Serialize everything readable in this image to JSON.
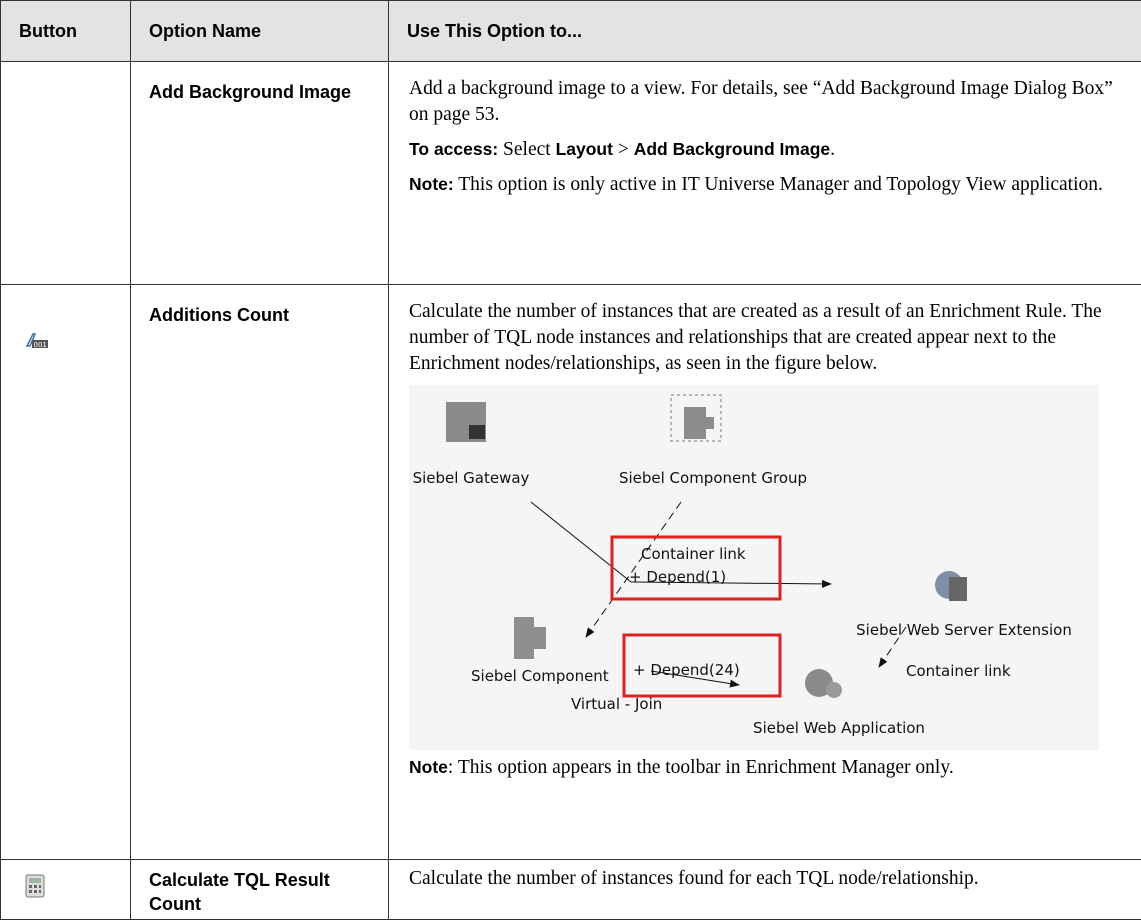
{
  "table": {
    "headers": [
      "Button",
      "Option Name",
      "Use This Option to..."
    ],
    "rows": [
      {
        "option": "Add Background Image",
        "description": [
          [
            {
              "text": "Add a background image to a view. For details, see “Add Background Image Dialog Box” on page 53.",
              "bold": false
            }
          ],
          [
            {
              "text": "To access:",
              "bold": true
            },
            {
              "text": " Select ",
              "bold": false
            },
            {
              "text": "Layout",
              "bold": true
            },
            {
              "text": " > ",
              "bold": false
            },
            {
              "text": "Add Background Image",
              "bold": true
            },
            {
              "text": ".",
              "bold": false
            }
          ],
          [
            {
              "text": "Note:",
              "bold": true
            },
            {
              "text": " This option is only active in IT Universe Manager and Topology View application.",
              "bold": false
            }
          ]
        ]
      },
      {
        "option": "Additions Count",
        "description": [
          [
            {
              "text": "Calculate the number of instances that are created as a result of an Enrichment Rule. The number of TQL node instances and relationships that are created appear next to the Enrichment nodes/relationships, as seen in the figure below.",
              "bold": false
            }
          ]
        ],
        "figure": {
          "labels": [
            "Siebel Gateway",
            "Siebel Component Group",
            "Container link",
            "+ Depend(1)",
            "Siebel Web Server Extension",
            "Siebel Component",
            "+ Depend(24)",
            "Virtual - Join",
            "Container link",
            "Siebel Web Application"
          ]
        },
        "note": [
          {
            "text": "Note",
            "bold": true
          },
          {
            "text": ": This option appears in the toolbar in Enrichment Manager only.",
            "bold": false
          }
        ]
      },
      {
        "option": "Calculate TQL Result Count",
        "description": [
          [
            {
              "text": "Calculate the number of instances found for each TQL node/relationship.",
              "bold": false
            }
          ]
        ]
      }
    ]
  }
}
